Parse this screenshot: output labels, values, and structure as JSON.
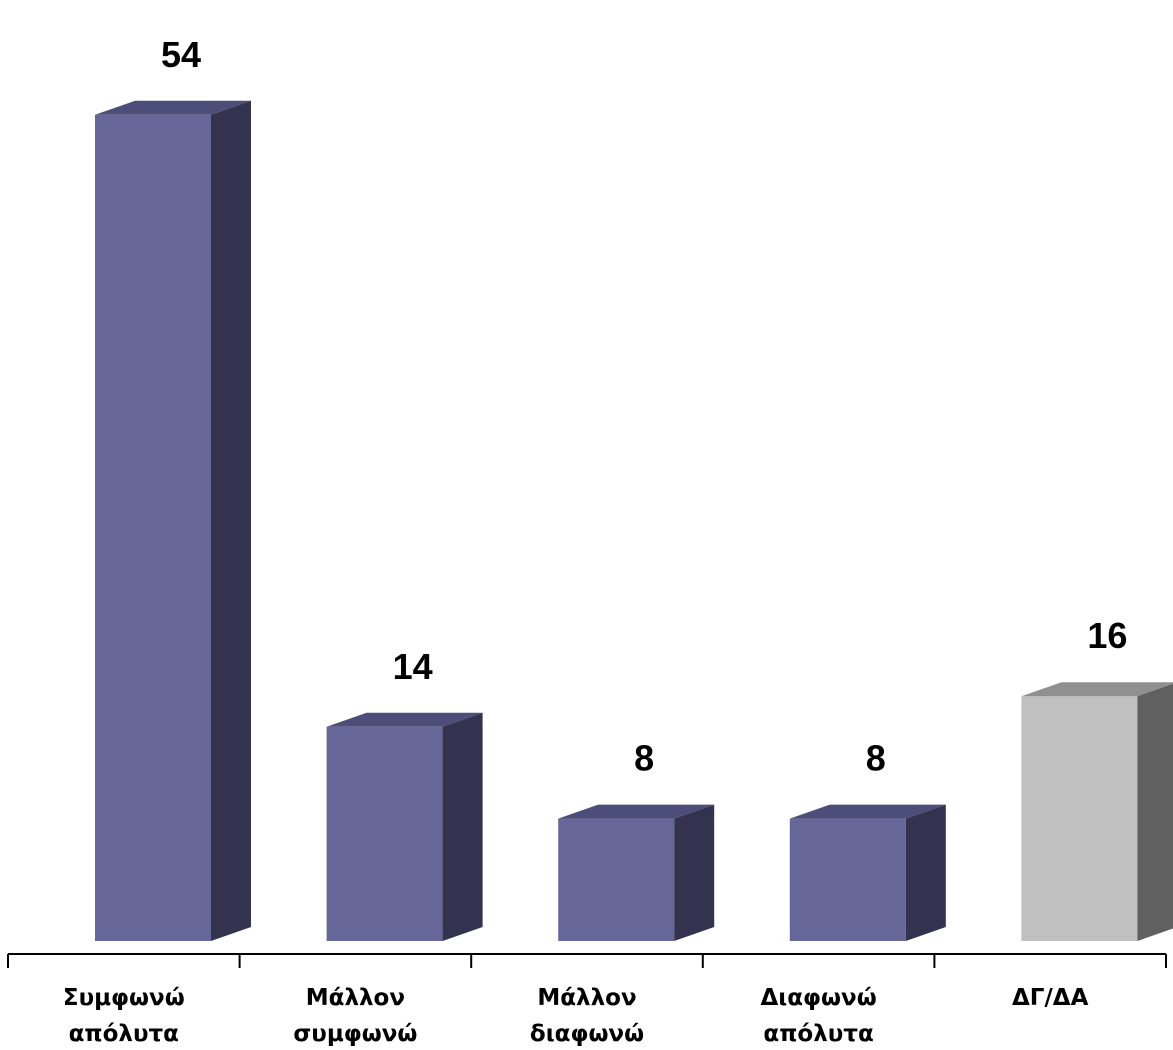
{
  "chart_data": {
    "type": "bar",
    "style": "3d",
    "categories": [
      [
        "Συμφωνώ",
        "απόλυτα"
      ],
      [
        "Μάλλον",
        "συμφωνώ"
      ],
      [
        "Μάλλον",
        "διαφωνώ"
      ],
      [
        "Διαφωνώ",
        "απόλυτα"
      ],
      [
        "ΔΓ/ΔΑ"
      ]
    ],
    "values": [
      54,
      14,
      8,
      8,
      16
    ],
    "data_labels": [
      "54",
      "14",
      "8",
      "8",
      "16"
    ],
    "bar_colors": [
      {
        "front": "#666699",
        "top": "#4d4d7a",
        "side": "#333350"
      },
      {
        "front": "#666699",
        "top": "#4d4d7a",
        "side": "#333350"
      },
      {
        "front": "#666699",
        "top": "#4d4d7a",
        "side": "#333350"
      },
      {
        "front": "#666699",
        "top": "#4d4d7a",
        "side": "#333350"
      },
      {
        "front": "#c0c0c0",
        "top": "#909090",
        "side": "#606060"
      }
    ],
    "title": "",
    "xlabel": "",
    "ylabel": "",
    "grid": false,
    "legend": "none"
  }
}
